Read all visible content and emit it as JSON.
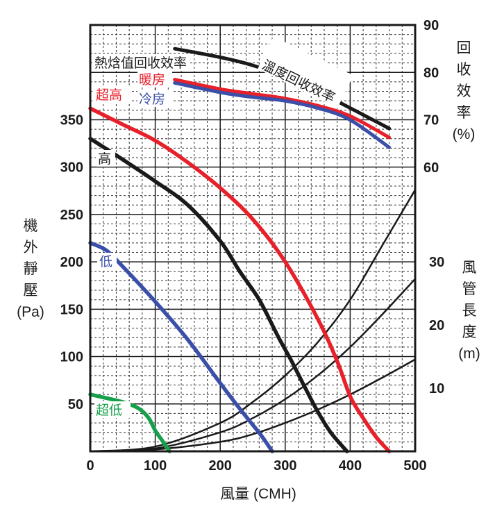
{
  "chart_data": {
    "type": "line",
    "xlabel": "風量 (CMH)",
    "xlim": [
      0,
      500
    ],
    "x_ticks": [
      "0",
      "100",
      "200",
      "300",
      "400",
      "500"
    ],
    "grid": true,
    "left_axis": {
      "label_chars": [
        "機",
        "外",
        "靜",
        "壓"
      ],
      "unit": "(Pa)",
      "ylim": [
        0,
        450
      ],
      "ticks": [
        "50",
        "100",
        "150",
        "200",
        "250",
        "300",
        "350"
      ],
      "tick_values": [
        50,
        100,
        150,
        200,
        250,
        300,
        350
      ]
    },
    "right_axis_efficiency": {
      "label_chars": [
        "回",
        "收",
        "效",
        "率"
      ],
      "unit": "(%)",
      "ticks": [
        "60",
        "70",
        "80",
        "90"
      ],
      "tick_values": [
        60,
        70,
        80,
        90
      ],
      "range": [
        60,
        90
      ]
    },
    "right_axis_duct": {
      "label_chars": [
        "風",
        "管",
        "長",
        "度"
      ],
      "unit": "(m)",
      "ticks": [
        "10",
        "20",
        "30"
      ],
      "tick_values": [
        10,
        20,
        30
      ],
      "range": [
        0,
        30
      ]
    },
    "pressure_series": [
      {
        "name": "超高",
        "color": "#e8202a",
        "x": [
          0,
          50,
          100,
          150,
          200,
          250,
          300,
          350,
          380,
          400,
          420,
          440,
          460
        ],
        "y": [
          362,
          345,
          328,
          305,
          278,
          245,
          200,
          140,
          95,
          58,
          35,
          15,
          0
        ]
      },
      {
        "name": "高",
        "color": "#1a1a1a",
        "x": [
          0,
          50,
          100,
          150,
          200,
          230,
          260,
          290,
          310,
          330,
          350,
          370,
          395
        ],
        "y": [
          330,
          308,
          285,
          260,
          222,
          190,
          160,
          120,
          95,
          68,
          42,
          20,
          0
        ]
      },
      {
        "name": "低",
        "color": "#3a4fa8",
        "x": [
          0,
          25,
          50,
          100,
          150,
          200,
          230,
          250,
          265,
          280
        ],
        "y": [
          220,
          212,
          195,
          158,
          118,
          72,
          45,
          28,
          15,
          0
        ]
      },
      {
        "name": "超低",
        "color": "#17a04a",
        "x": [
          0,
          50,
          75,
          90,
          100,
          110,
          122
        ],
        "y": [
          60,
          52,
          45,
          35,
          22,
          12,
          0
        ]
      }
    ],
    "efficiency_series": [
      {
        "name": "溫度回收效率",
        "color": "#1a1a1a",
        "x": [
          130,
          200,
          250,
          300,
          350,
          400,
          460
        ],
        "y": [
          85,
          83.2,
          81.5,
          79,
          76,
          72.5,
          68.2
        ]
      },
      {
        "name": "暖房",
        "color": "#e8202a",
        "x": [
          130,
          200,
          250,
          300,
          350,
          400,
          460
        ],
        "y": [
          78.5,
          76.5,
          75.5,
          74.5,
          73,
          70.8,
          66.3
        ]
      },
      {
        "name": "冷房",
        "color": "#3a4fa8",
        "x": [
          130,
          200,
          250,
          300,
          350,
          400,
          460
        ],
        "y": [
          77.8,
          75.8,
          74.8,
          74,
          72.5,
          70,
          64.2
        ]
      }
    ],
    "duct_curves": [
      {
        "x": [
          0,
          100,
          200,
          250,
          300,
          350,
          400,
          450,
          500
        ],
        "y": [
          0,
          5,
          30,
          52,
          80,
          115,
          160,
          218,
          276
        ]
      },
      {
        "x": [
          0,
          100,
          200,
          250,
          300,
          350,
          400,
          450,
          500
        ],
        "y": [
          0,
          3,
          20,
          35,
          55,
          80,
          110,
          145,
          182
        ]
      },
      {
        "x": [
          0,
          100,
          200,
          250,
          300,
          350,
          400,
          450,
          500
        ],
        "y": [
          0,
          2,
          10,
          18,
          30,
          44,
          60,
          78,
          97
        ]
      }
    ],
    "annotations": {
      "efficiency_title": "熱焓值回收效率",
      "heating": "暖房",
      "cooling": "冷房",
      "temperature_recovery": "溫度回收效率",
      "super_high": "超高",
      "high": "高",
      "low": "低",
      "super_low": "超低"
    }
  }
}
